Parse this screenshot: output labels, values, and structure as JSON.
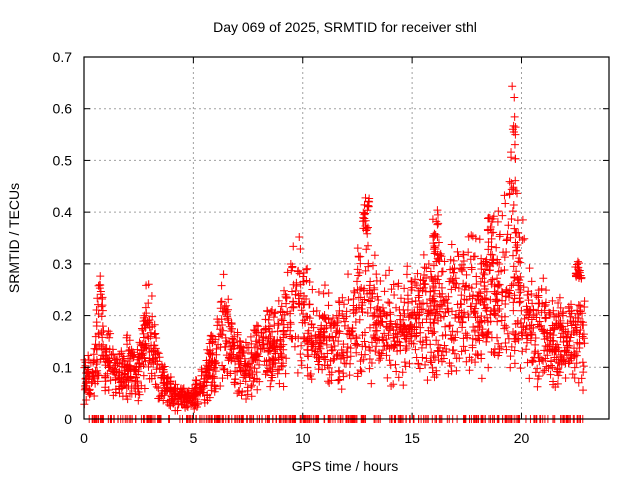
{
  "chart_data": {
    "type": "scatter",
    "title": "Day 069 of 2025, SRMTID for receiver sthl",
    "xlabel": "GPS time / hours",
    "ylabel": "SRMTID / TECUs",
    "xlim": [
      0,
      24
    ],
    "ylim": [
      0,
      0.7
    ],
    "xticks": [
      0,
      5,
      10,
      15,
      20
    ],
    "xtick_labels": [
      "0",
      "5",
      "10",
      "15",
      "20"
    ],
    "yticks": [
      0,
      0.1,
      0.2,
      0.3,
      0.4,
      0.5,
      0.6,
      0.7
    ],
    "ytick_labels": [
      "0",
      "0.1",
      "0.2",
      "0.3",
      "0.4",
      "0.5",
      "0.6",
      "0.7"
    ],
    "grid": true,
    "marker": "+",
    "color": "#ff0000",
    "series": [
      {
        "name": "SRMTID",
        "envelope": [
          {
            "x": 0.0,
            "y": 0.08
          },
          {
            "x": 0.5,
            "y": 0.1
          },
          {
            "x": 0.7,
            "y": 0.2
          },
          {
            "x": 1.0,
            "y": 0.12
          },
          {
            "x": 1.5,
            "y": 0.09
          },
          {
            "x": 2.0,
            "y": 0.1
          },
          {
            "x": 2.5,
            "y": 0.09
          },
          {
            "x": 2.9,
            "y": 0.18
          },
          {
            "x": 3.5,
            "y": 0.07
          },
          {
            "x": 4.0,
            "y": 0.05
          },
          {
            "x": 4.5,
            "y": 0.04
          },
          {
            "x": 5.0,
            "y": 0.04
          },
          {
            "x": 5.5,
            "y": 0.07
          },
          {
            "x": 6.0,
            "y": 0.12
          },
          {
            "x": 6.3,
            "y": 0.19
          },
          {
            "x": 6.7,
            "y": 0.12
          },
          {
            "x": 7.5,
            "y": 0.1
          },
          {
            "x": 8.0,
            "y": 0.13
          },
          {
            "x": 8.5,
            "y": 0.14
          },
          {
            "x": 9.0,
            "y": 0.15
          },
          {
            "x": 9.7,
            "y": 0.24
          },
          {
            "x": 10.5,
            "y": 0.15
          },
          {
            "x": 11.5,
            "y": 0.16
          },
          {
            "x": 12.3,
            "y": 0.18
          },
          {
            "x": 12.9,
            "y": 0.24
          },
          {
            "x": 13.5,
            "y": 0.18
          },
          {
            "x": 14.5,
            "y": 0.17
          },
          {
            "x": 15.5,
            "y": 0.2
          },
          {
            "x": 16.5,
            "y": 0.2
          },
          {
            "x": 17.5,
            "y": 0.23
          },
          {
            "x": 18.5,
            "y": 0.22
          },
          {
            "x": 19.0,
            "y": 0.25
          },
          {
            "x": 19.6,
            "y": 0.3
          },
          {
            "x": 20.5,
            "y": 0.18
          },
          {
            "x": 21.5,
            "y": 0.15
          },
          {
            "x": 22.5,
            "y": 0.14
          },
          {
            "x": 22.8,
            "y": 0.15
          }
        ],
        "spike_clusters": [
          {
            "x": 12.9,
            "y_range": [
              0.36,
              0.44
            ]
          },
          {
            "x": 19.6,
            "y_range": [
              0.4,
              0.675
            ]
          },
          {
            "x": 18.6,
            "y_range": [
              0.3,
              0.395
            ]
          },
          {
            "x": 16.1,
            "y_range": [
              0.3,
              0.405
            ]
          },
          {
            "x": 22.6,
            "y_range": [
              0.27,
              0.305
            ]
          }
        ],
        "zero_values_x_span": [
          0.0,
          22.9
        ],
        "y_max": 0.675
      }
    ]
  }
}
